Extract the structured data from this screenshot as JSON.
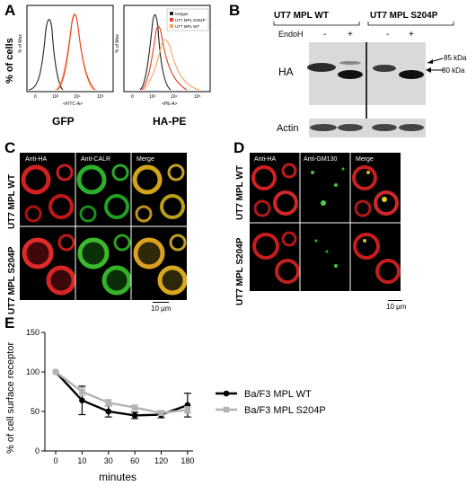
{
  "panels": {
    "A": {
      "letter": "A",
      "ylabel": "% of cells",
      "hist_ylabel": "% of Max",
      "gfp": {
        "xlabel": "GFP",
        "axis_caption": "<FITC-A>",
        "ticks": [
          "0",
          "10³",
          "10⁴",
          "10⁵"
        ]
      },
      "hape": {
        "xlabel": "HA-PE",
        "axis_caption": "<PE-A>",
        "ticks": [
          "0",
          "10³",
          "10⁴",
          "10⁵"
        ]
      },
      "legend": [
        {
          "label": "Isotype",
          "color": "#222222"
        },
        {
          "label": "UT7 MPL S204P",
          "color": "#e8401c"
        },
        {
          "label": "UT7 MPL WT",
          "color": "#f5a35c"
        }
      ]
    },
    "B": {
      "letter": "B",
      "group1": "UT7 MPL WT",
      "group2": "UT7 MPL S204P",
      "endoh_label": "EndoH",
      "lane_signs": [
        "-",
        "+",
        "-",
        "+"
      ],
      "row1": "HA",
      "row2": "Actin",
      "mw1": "85 kDa",
      "mw2": "80 kDa"
    },
    "C": {
      "letter": "C",
      "cols": [
        "Anti-HA",
        "Anti-CALR",
        "Merge"
      ],
      "rows": [
        "UT7 MPL WT",
        "UT7 MPL S204P"
      ],
      "scale": "10 μm"
    },
    "D": {
      "letter": "D",
      "cols": [
        "Anti-HA",
        "Anti-GM130",
        "Merge"
      ],
      "rows": [
        "UT7 MPL WT",
        "UT7 MPL S204P"
      ],
      "scale": "10 μm"
    },
    "E": {
      "letter": "E",
      "ylabel": "% of cell surface receptor",
      "xlabel": "minutes"
    }
  },
  "chart_data": {
    "type": "line",
    "title": "",
    "xlabel": "minutes",
    "ylabel": "% of cell surface receptor",
    "categories": [
      "0",
      "10",
      "30",
      "60",
      "120",
      "180"
    ],
    "ylim": [
      0,
      150
    ],
    "yticks": [
      0,
      50,
      100,
      150
    ],
    "legend_position": "right",
    "series": [
      {
        "name": "Ba/F3 MPL WT",
        "color": "#000000",
        "values": [
          100,
          64,
          50,
          45,
          46,
          58
        ],
        "errors": [
          0,
          18,
          7,
          4,
          4,
          15
        ]
      },
      {
        "name": "Ba/F3 MPL S204P",
        "color": "#b3b3b3",
        "values": [
          100,
          75,
          61,
          55,
          48,
          52
        ],
        "errors": [
          0,
          5,
          4,
          3,
          3,
          4
        ]
      }
    ]
  }
}
